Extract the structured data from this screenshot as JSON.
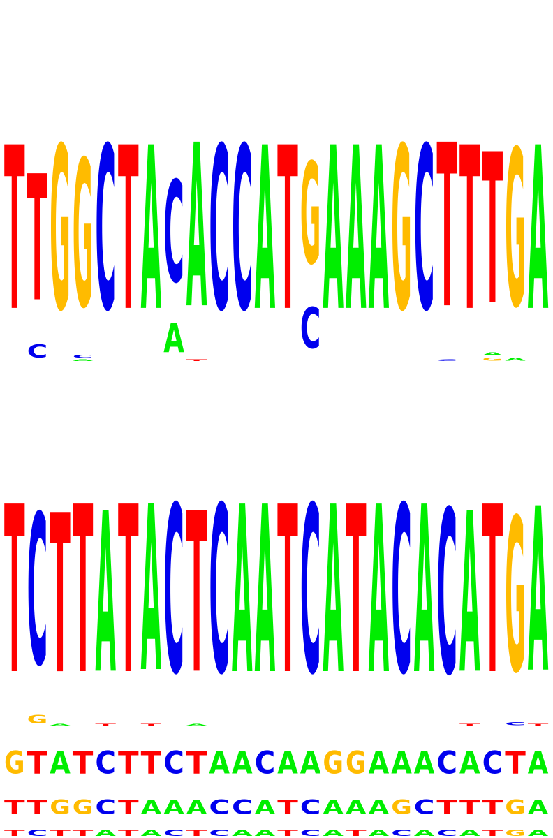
{
  "colors": {
    "A": "#00ee00",
    "C": "#0000ee",
    "G": "#ffbb00",
    "T": "#ff0000"
  },
  "logos": [
    {
      "name": "motif-logo-1",
      "columns": [
        [
          [
            "T",
            1.0
          ]
        ],
        [
          [
            "C",
            0.08
          ],
          [
            "T",
            0.77
          ]
        ],
        [
          [
            "G",
            1.0
          ]
        ],
        [
          [
            "A",
            0.01
          ],
          [
            "C",
            0.02
          ],
          [
            "G",
            0.9
          ]
        ],
        [
          [
            "C",
            1.0
          ]
        ],
        [
          [
            "T",
            1.0
          ]
        ],
        [
          [
            "A",
            1.0
          ]
        ],
        [
          [
            "A",
            0.18
          ],
          [
            "C",
            0.62
          ]
        ],
        [
          [
            "T",
            0.01
          ],
          [
            "A",
            1.0
          ]
        ],
        [
          [
            "C",
            1.0
          ]
        ],
        [
          [
            "C",
            1.0
          ]
        ],
        [
          [
            "A",
            1.0
          ]
        ],
        [
          [
            "T",
            1.0
          ]
        ],
        [
          [
            "C",
            0.25
          ],
          [
            "G",
            0.62
          ]
        ],
        [
          [
            "A",
            1.0
          ]
        ],
        [
          [
            "A",
            1.0
          ]
        ],
        [
          [
            "A",
            1.0
          ]
        ],
        [
          [
            "G",
            1.0
          ]
        ],
        [
          [
            "C",
            1.0
          ]
        ],
        [
          [
            "C",
            0.01
          ],
          [
            "T",
            1.0
          ]
        ],
        [
          [
            "T",
            1.0
          ]
        ],
        [
          [
            "G",
            0.02
          ],
          [
            "A",
            0.02
          ],
          [
            "T",
            0.92
          ]
        ],
        [
          [
            "A",
            0.02
          ],
          [
            "G",
            0.96
          ]
        ],
        [
          [
            "A",
            1.0
          ]
        ]
      ]
    },
    {
      "name": "motif-logo-2",
      "columns": [
        [
          [
            "T",
            1.0
          ]
        ],
        [
          [
            "G",
            0.05
          ],
          [
            "C",
            0.9
          ]
        ],
        [
          [
            "A",
            0.01
          ],
          [
            "T",
            0.95
          ]
        ],
        [
          [
            "T",
            1.0
          ]
        ],
        [
          [
            "T",
            0.01
          ],
          [
            "A",
            0.96
          ]
        ],
        [
          [
            "T",
            1.0
          ]
        ],
        [
          [
            "T",
            0.01
          ],
          [
            "A",
            0.99
          ]
        ],
        [
          [
            "C",
            1.0
          ]
        ],
        [
          [
            "A",
            0.01
          ],
          [
            "T",
            0.96
          ]
        ],
        [
          [
            "C",
            1.0
          ]
        ],
        [
          [
            "A",
            1.0
          ]
        ],
        [
          [
            "A",
            1.0
          ]
        ],
        [
          [
            "T",
            1.0
          ]
        ],
        [
          [
            "C",
            1.0
          ]
        ],
        [
          [
            "A",
            1.0
          ]
        ],
        [
          [
            "T",
            1.0
          ]
        ],
        [
          [
            "A",
            1.0
          ]
        ],
        [
          [
            "C",
            1.0
          ]
        ],
        [
          [
            "A",
            1.0
          ]
        ],
        [
          [
            "C",
            0.98
          ]
        ],
        [
          [
            "T",
            0.01
          ],
          [
            "A",
            0.96
          ]
        ],
        [
          [
            "T",
            1.0
          ]
        ],
        [
          [
            "C",
            0.02
          ],
          [
            "G",
            0.92
          ]
        ],
        [
          [
            "T",
            0.01
          ],
          [
            "A",
            0.98
          ]
        ]
      ]
    }
  ],
  "sequence_rows": [
    "GTATCTTCTAACAAGGAAACACTA",
    "TTGGCTAAACCATCAAAGCTTTGA",
    "TCTTATACTCAATCATACACATGA"
  ]
}
